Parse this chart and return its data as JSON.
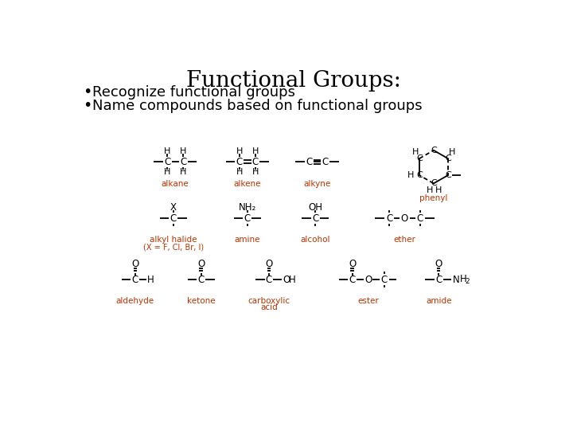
{
  "title": "Functional Groups:",
  "bullets": [
    "Recognize functional groups",
    "Name compounds based on functional groups"
  ],
  "title_fontsize": 20,
  "bullet_fontsize": 13,
  "label_color": "#bb3300",
  "struct_color": "#000000",
  "bg_color": "#ffffff",
  "title_font": "DejaVu Serif",
  "body_font": "DejaVu Sans",
  "struct_fontsize": 8.5,
  "label_fs": 7.5
}
